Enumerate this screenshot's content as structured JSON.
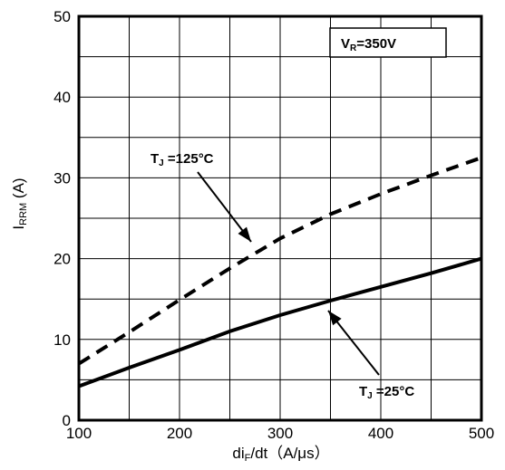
{
  "chart_data": {
    "type": "line",
    "xlabel": {
      "main": "di",
      "sub": "F",
      "rest": "/dt（A/μs）"
    },
    "ylabel": {
      "main": "I",
      "sub": "RRM",
      "rest": " (A)"
    },
    "xlim": [
      100,
      500
    ],
    "ylim": [
      0,
      50
    ],
    "x_ticks": [
      "100",
      "200",
      "300",
      "400",
      "500"
    ],
    "y_ticks": [
      "0",
      "10",
      "20",
      "30",
      "40",
      "50"
    ],
    "grid": true,
    "series": [
      {
        "name": "T_J=125°C",
        "style": "dashed",
        "x": [
          100,
          150,
          200,
          250,
          300,
          350,
          400,
          450,
          500
        ],
        "y": [
          7,
          10.9,
          14.9,
          18.8,
          22.5,
          25.5,
          28,
          30.3,
          32.5
        ]
      },
      {
        "name": "T_J=25°C",
        "style": "solid",
        "x": [
          100,
          150,
          200,
          250,
          300,
          350,
          400,
          450,
          500
        ],
        "y": [
          4.2,
          6.5,
          8.7,
          11,
          13,
          14.8,
          16.5,
          18.2,
          20
        ]
      }
    ],
    "annotations": {
      "condition": {
        "main": "V",
        "sub": "R",
        "rest": "=350V"
      },
      "tj125": {
        "main": "T",
        "sub": "J",
        "rest": " =125°C"
      },
      "tj25": {
        "main": "T",
        "sub": "J",
        "rest": " =25°C"
      }
    }
  }
}
